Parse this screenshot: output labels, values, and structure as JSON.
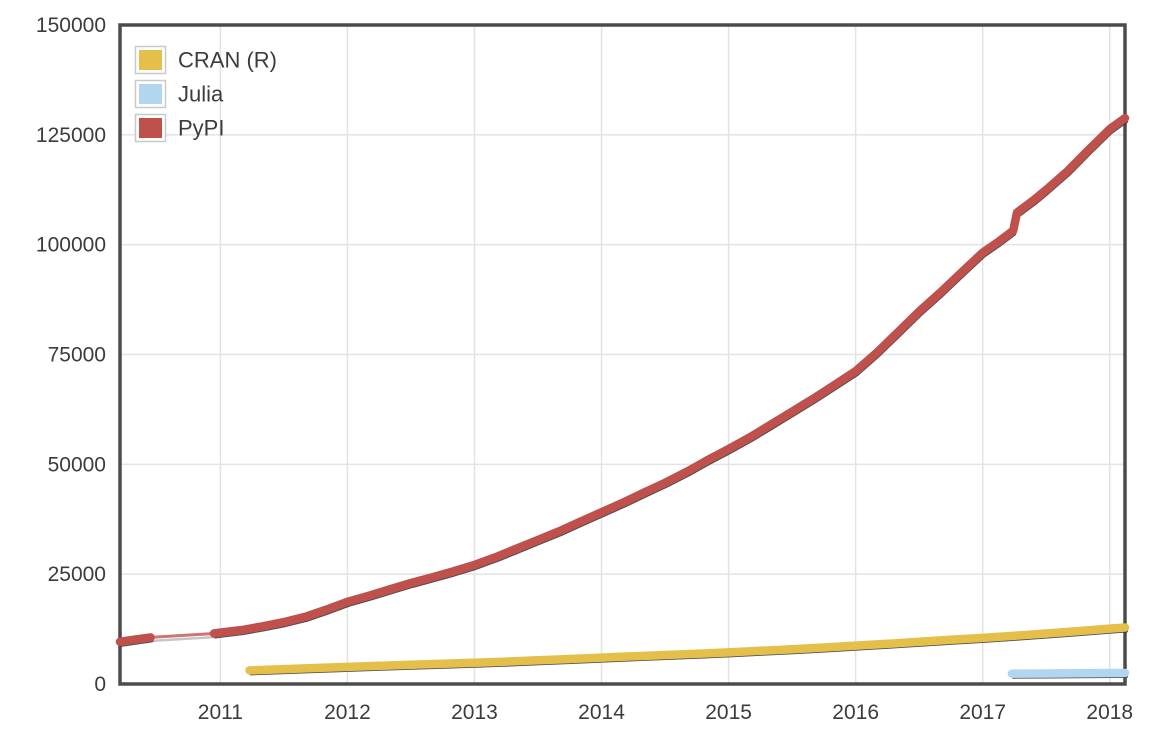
{
  "figure": {
    "background": "#ffffff",
    "text_color": "#3c3c3c",
    "grid_color": "#e3e3e3",
    "border_color": "#4b4b4b",
    "shadow_color": "#303030"
  },
  "legend": {
    "position": "top-left",
    "items": [
      {
        "id": "cran",
        "label": "CRAN (R)",
        "color": "#e4c04a"
      },
      {
        "id": "julia",
        "label": "Julia",
        "color": "#b3d6f0"
      },
      {
        "id": "pypi",
        "label": "PyPI",
        "color": "#c0504c"
      }
    ]
  },
  "chart_data": {
    "type": "line",
    "title": "",
    "xlabel": "",
    "ylabel": "",
    "grid": true,
    "legend_position": "top-left",
    "xlim": [
      2010.21,
      2018.12
    ],
    "ylim": [
      0,
      150000
    ],
    "x_ticks": [
      2011,
      2012,
      2013,
      2014,
      2015,
      2016,
      2017,
      2018
    ],
    "y_ticks": [
      0,
      25000,
      50000,
      75000,
      100000,
      125000,
      150000
    ],
    "series": [
      {
        "name": "CRAN (R)",
        "color": "#e4c04a",
        "points": [
          [
            2011.23,
            3100
          ],
          [
            2011.5,
            3400
          ],
          [
            2011.75,
            3650
          ],
          [
            2012.0,
            3900
          ],
          [
            2012.25,
            4150
          ],
          [
            2012.5,
            4400
          ],
          [
            2012.75,
            4600
          ],
          [
            2013.0,
            4850
          ],
          [
            2013.25,
            5100
          ],
          [
            2013.5,
            5400
          ],
          [
            2013.75,
            5700
          ],
          [
            2014.0,
            6000
          ],
          [
            2014.25,
            6300
          ],
          [
            2014.5,
            6600
          ],
          [
            2014.75,
            6900
          ],
          [
            2015.0,
            7200
          ],
          [
            2015.25,
            7550
          ],
          [
            2015.5,
            7900
          ],
          [
            2015.75,
            8300
          ],
          [
            2016.0,
            8750
          ],
          [
            2016.25,
            9150
          ],
          [
            2016.5,
            9600
          ],
          [
            2016.75,
            10050
          ],
          [
            2017.0,
            10500
          ],
          [
            2017.25,
            11000
          ],
          [
            2017.5,
            11500
          ],
          [
            2017.75,
            12050
          ],
          [
            2018.0,
            12600
          ],
          [
            2018.12,
            12850
          ]
        ]
      },
      {
        "name": "Julia",
        "color": "#b3d6f0",
        "points": [
          [
            2017.23,
            2350
          ],
          [
            2017.5,
            2400
          ],
          [
            2017.75,
            2450
          ],
          [
            2018.0,
            2500
          ],
          [
            2018.12,
            2500
          ]
        ]
      },
      {
        "name": "PyPI",
        "color": "#c0504c",
        "gap": {
          "from": 2010.45,
          "to": 2010.95,
          "style": "thin-faded"
        },
        "points": [
          [
            2010.21,
            9600
          ],
          [
            2010.3,
            10000
          ],
          [
            2010.45,
            10600
          ],
          [
            2010.95,
            11500
          ],
          [
            2011.0,
            11700
          ],
          [
            2011.17,
            12300
          ],
          [
            2011.33,
            13100
          ],
          [
            2011.5,
            14100
          ],
          [
            2011.67,
            15300
          ],
          [
            2011.83,
            16900
          ],
          [
            2012.0,
            18700
          ],
          [
            2012.17,
            20100
          ],
          [
            2012.33,
            21500
          ],
          [
            2012.5,
            23000
          ],
          [
            2012.67,
            24300
          ],
          [
            2012.83,
            25600
          ],
          [
            2013.0,
            27100
          ],
          [
            2013.17,
            28900
          ],
          [
            2013.33,
            30800
          ],
          [
            2013.5,
            32800
          ],
          [
            2013.67,
            34800
          ],
          [
            2013.83,
            36900
          ],
          [
            2014.0,
            39100
          ],
          [
            2014.17,
            41300
          ],
          [
            2014.33,
            43500
          ],
          [
            2014.5,
            45800
          ],
          [
            2014.67,
            48300
          ],
          [
            2014.83,
            50900
          ],
          [
            2015.0,
            53500
          ],
          [
            2015.17,
            56200
          ],
          [
            2015.33,
            59000
          ],
          [
            2015.5,
            62000
          ],
          [
            2015.67,
            65000
          ],
          [
            2015.83,
            68000
          ],
          [
            2016.0,
            71200
          ],
          [
            2016.17,
            75500
          ],
          [
            2016.33,
            80000
          ],
          [
            2016.5,
            84800
          ],
          [
            2016.67,
            89200
          ],
          [
            2016.83,
            93600
          ],
          [
            2017.0,
            98200
          ],
          [
            2017.13,
            100800
          ],
          [
            2017.24,
            103200
          ],
          [
            2017.27,
            107300
          ],
          [
            2017.4,
            110100
          ],
          [
            2017.5,
            112500
          ],
          [
            2017.67,
            116800
          ],
          [
            2017.83,
            121500
          ],
          [
            2018.0,
            126300
          ],
          [
            2018.12,
            128800
          ]
        ]
      }
    ]
  }
}
